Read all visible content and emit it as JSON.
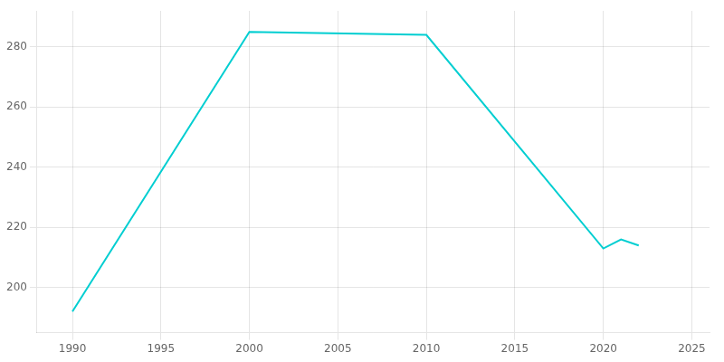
{
  "chart_data": {
    "type": "line",
    "x": [
      1990,
      2000,
      2010,
      2020,
      2021,
      2022
    ],
    "values": [
      192,
      285,
      284,
      213,
      216,
      214
    ],
    "color": "#00CED1",
    "xlim": [
      1988,
      2026
    ],
    "ylim": [
      185,
      292
    ],
    "xticks": [
      1990,
      1995,
      2000,
      2005,
      2010,
      2015,
      2020,
      2025
    ],
    "yticks": [
      200,
      220,
      240,
      260,
      280
    ],
    "grid": true
  }
}
